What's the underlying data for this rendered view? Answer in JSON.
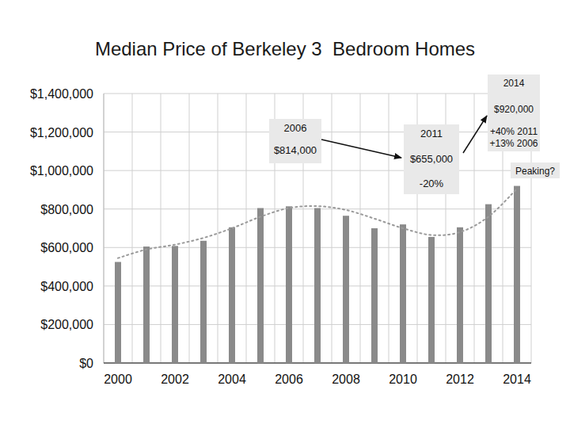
{
  "chart_data": {
    "type": "bar",
    "title": "Median Price of Berkeley 3  Bedroom Homes",
    "categories": [
      "2000",
      null,
      "2002",
      null,
      "2004",
      null,
      "2006",
      null,
      "2008",
      null,
      "2010",
      null,
      "2012",
      null,
      "2014"
    ],
    "series": [
      {
        "type": "bar",
        "color": "#8a8a8a",
        "values": [
          525000,
          605000,
          608000,
          635000,
          705000,
          805000,
          814000,
          805000,
          765000,
          700000,
          720000,
          655000,
          705000,
          825000,
          920000
        ]
      },
      {
        "type": "line",
        "line_style": "dotted",
        "color": "#9a9a9a",
        "values": [
          545000,
          590000,
          615000,
          650000,
          700000,
          760000,
          805000,
          815000,
          795000,
          750000,
          700000,
          665000,
          680000,
          760000,
          905000
        ]
      }
    ],
    "ylim": [
      0,
      1400000
    ],
    "yticks": [
      {
        "value": 0,
        "label": "$0"
      },
      {
        "value": 200000,
        "label": "$200,000"
      },
      {
        "value": 400000,
        "label": "$400,000"
      },
      {
        "value": 600000,
        "label": "$600,000"
      },
      {
        "value": 800000,
        "label": "$800,000"
      },
      {
        "value": 1000000,
        "label": "$1,000,000"
      },
      {
        "value": 1200000,
        "label": "$1,200,000"
      },
      {
        "value": 1400000,
        "label": "$1,400,000"
      }
    ],
    "grid": true,
    "annotations": [
      {
        "lines": [
          "2006",
          "$814,000"
        ]
      },
      {
        "lines": [
          "2011",
          "$655,000",
          "-20%"
        ]
      },
      {
        "lines": [
          "2014",
          "$920,000",
          "+40% 2011",
          "+13% 2006"
        ]
      },
      {
        "lines": [
          "Peaking?"
        ]
      }
    ]
  }
}
